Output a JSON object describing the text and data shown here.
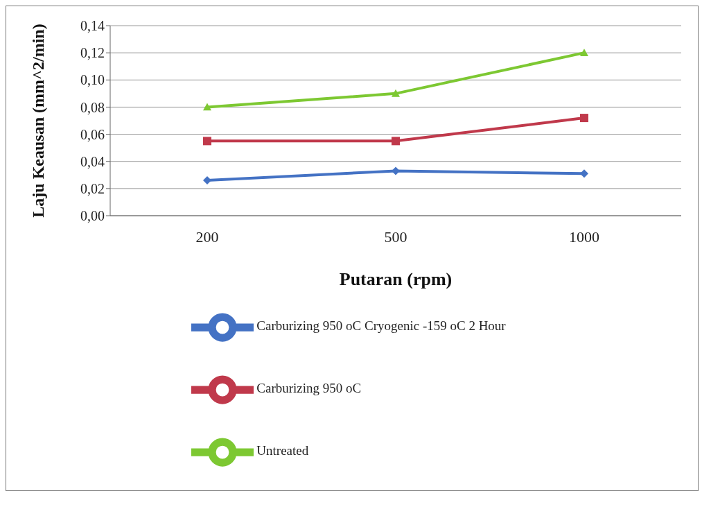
{
  "chart_data": {
    "type": "line",
    "xlabel": "Putaran (rpm)",
    "ylabel": "Laju Keausan (mm^2/min)",
    "categories": [
      "200",
      "500",
      "1000"
    ],
    "series": [
      {
        "name": "Carburizing 950 oC Cryogenic -159 oC 2 Hour",
        "color": "#4472c4",
        "marker": "diamond",
        "values": [
          0.026,
          0.033,
          0.031
        ]
      },
      {
        "name": "Carburizing 950 oC",
        "color": "#c0394b",
        "marker": "square",
        "values": [
          0.055,
          0.055,
          0.072
        ]
      },
      {
        "name": "Untreated",
        "color": "#7dc832",
        "marker": "triangle",
        "values": [
          0.08,
          0.09,
          0.12
        ]
      }
    ],
    "ylim": [
      0,
      0.14
    ],
    "yticks": [
      {
        "value": 0,
        "label": "0,00"
      },
      {
        "value": 0.02,
        "label": "0,02"
      },
      {
        "value": 0.04,
        "label": "0,04"
      },
      {
        "value": 0.06,
        "label": "0,06"
      },
      {
        "value": 0.08,
        "label": "0,08"
      },
      {
        "value": 0.1,
        "label": "0,10"
      },
      {
        "value": 0.12,
        "label": "0,12"
      },
      {
        "value": 0.14,
        "label": "0,14"
      }
    ],
    "grid": "y",
    "legend": "bottom",
    "line_style": "solid"
  }
}
